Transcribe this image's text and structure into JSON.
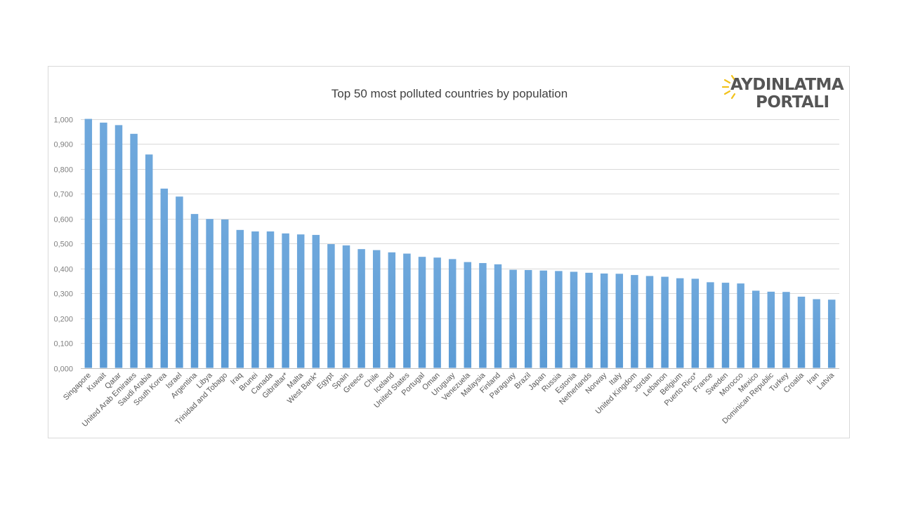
{
  "logo": {
    "line1": "AYDINLATMA",
    "line2": "PORTALI",
    "sun_color": "#f2c21b",
    "text_color": "#555555"
  },
  "chart_data": {
    "type": "bar",
    "title": "Top 50 most polluted countries by population",
    "xlabel": "",
    "ylabel": "",
    "ylim": [
      0,
      1.0
    ],
    "yticks": [
      "0,000",
      "0,100",
      "0,200",
      "0,300",
      "0,400",
      "0,500",
      "0,600",
      "0,700",
      "0,800",
      "0,900",
      "1,000"
    ],
    "grid": true,
    "bar_color": "#5b9bd5",
    "categories": [
      "Singapore",
      "Kuwait",
      "Qatar",
      "United Arab Emirates",
      "Saudi Arabia",
      "South Korea",
      "Israel",
      "Argentina",
      "Libya",
      "Trinidad and Tobago",
      "Iraq",
      "Brunei",
      "Canada",
      "Gibraltar*",
      "Malta",
      "West Bank*",
      "Egypt",
      "Spain",
      "Greece",
      "Chile",
      "Iceland",
      "United States",
      "Portugal",
      "Oman",
      "Uruguay",
      "Venezuela",
      "Malaysia",
      "Finland",
      "Paraguay",
      "Brazil",
      "Japan",
      "Russia",
      "Estonia",
      "Netherlands",
      "Norway",
      "Italy",
      "United Kingdom",
      "Jordan",
      "Lebanon",
      "Belgium",
      "Puerto Rico*",
      "France",
      "Sweden",
      "Morocco",
      "Mexico",
      "Dominican Republic",
      "Turkey",
      "Croatia",
      "Iran",
      "Latvia"
    ],
    "values": [
      1.0,
      0.985,
      0.975,
      0.94,
      0.857,
      0.72,
      0.688,
      0.618,
      0.598,
      0.596,
      0.554,
      0.548,
      0.548,
      0.54,
      0.536,
      0.534,
      0.497,
      0.492,
      0.477,
      0.473,
      0.464,
      0.459,
      0.446,
      0.443,
      0.437,
      0.425,
      0.421,
      0.416,
      0.394,
      0.393,
      0.391,
      0.389,
      0.386,
      0.382,
      0.379,
      0.378,
      0.373,
      0.369,
      0.366,
      0.36,
      0.358,
      0.344,
      0.342,
      0.339,
      0.31,
      0.306,
      0.305,
      0.286,
      0.276,
      0.274
    ]
  }
}
